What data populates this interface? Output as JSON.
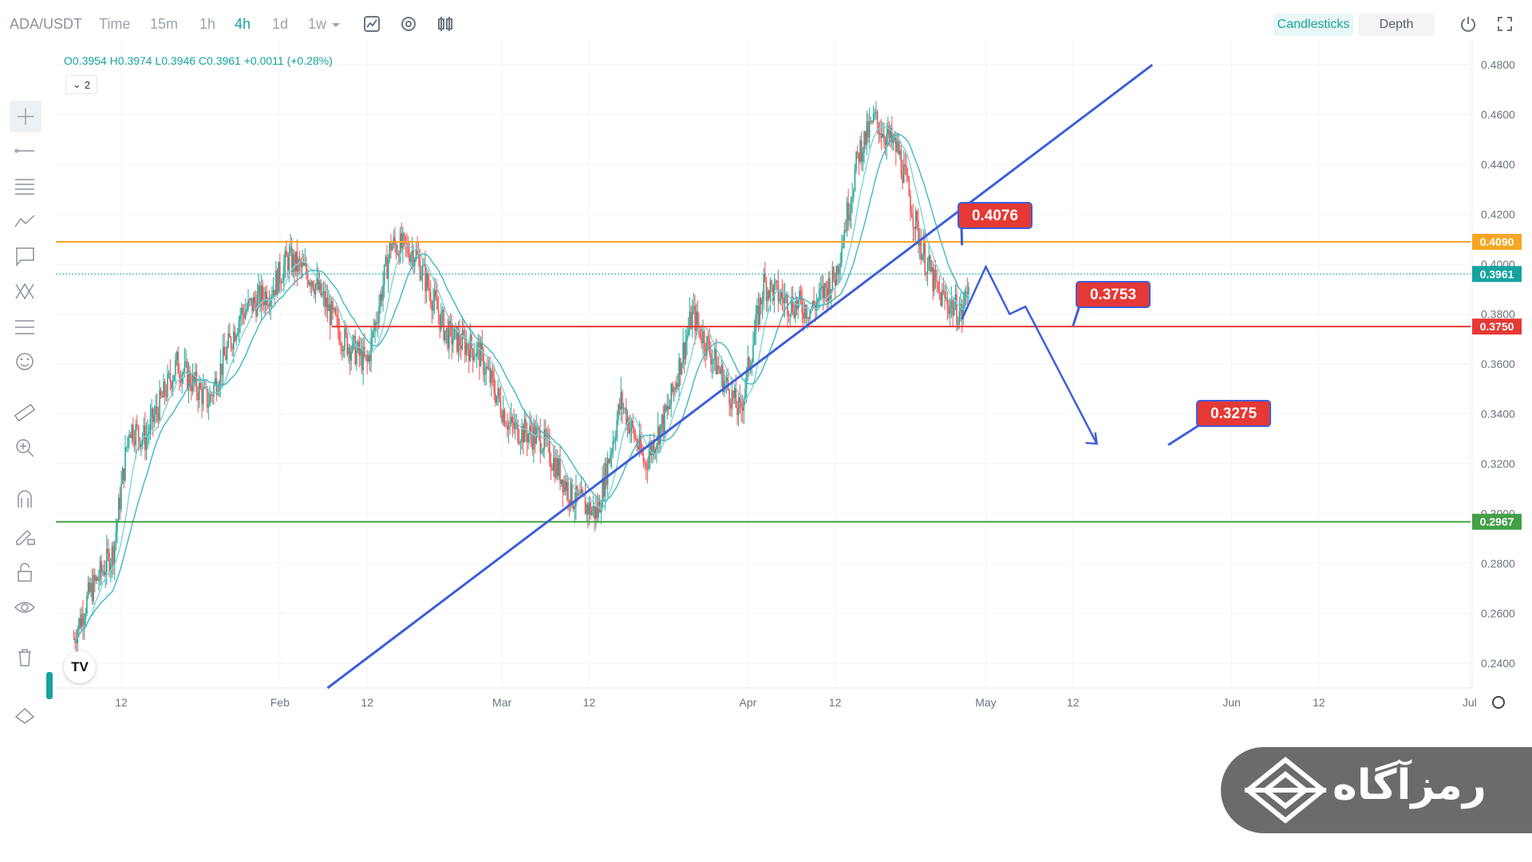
{
  "toolbar": {
    "symbol": "ADA/USDT",
    "intervals": [
      "Time",
      "15m",
      "1h",
      "4h",
      "1d",
      "1w"
    ],
    "active_interval": "4h",
    "chart_type_buttons": [
      "Candlesticks",
      "Depth"
    ],
    "active_chart_type": "Candlesticks"
  },
  "legend": {
    "ohlc": "O0.3954 H0.3974 L0.3946 C0.3961 +0.0011 (+0.28%)",
    "indicator_toggle": "2"
  },
  "brand": {
    "text": "رمزآگاه"
  },
  "colors": {
    "accent": "#16a3a0",
    "candle_up": "#26a69a",
    "candle_down": "#ef5350",
    "trendline": "#3d5fd9",
    "resistance_line": "#f5a623",
    "support_red_line": "#e53935",
    "support_green_line": "#43a047",
    "callout": "#e53935"
  },
  "chart_data": {
    "type": "candlestick",
    "symbol": "ADA/USDT",
    "timeframe": "4h",
    "y_axis": {
      "min": 0.23,
      "max": 0.49,
      "ticks": [
        "0.4800",
        "0.4600",
        "0.4400",
        "0.4200",
        "0.4000",
        "0.3800",
        "0.3600",
        "0.3400",
        "0.3200",
        "0.3000",
        "0.2800",
        "0.2600",
        "0.2400"
      ]
    },
    "x_axis": {
      "ticks": [
        "12",
        "Feb",
        "12",
        "Mar",
        "12",
        "Apr",
        "12",
        "May",
        "12",
        "Jun",
        "12",
        "Jul"
      ]
    },
    "price_path": [
      {
        "x": "Jan 5",
        "y": 0.25
      },
      {
        "x": "Jan 7",
        "y": 0.268
      },
      {
        "x": "Jan 10",
        "y": 0.285
      },
      {
        "x": "Jan 12",
        "y": 0.335
      },
      {
        "x": "Jan 14",
        "y": 0.33
      },
      {
        "x": "Jan 18",
        "y": 0.36
      },
      {
        "x": "Jan 22",
        "y": 0.345
      },
      {
        "x": "Jan 26",
        "y": 0.38
      },
      {
        "x": "Jan 30",
        "y": 0.39
      },
      {
        "x": "Feb 1",
        "y": 0.402
      },
      {
        "x": "Feb 4",
        "y": 0.395
      },
      {
        "x": "Feb 8",
        "y": 0.37
      },
      {
        "x": "Feb 11",
        "y": 0.36
      },
      {
        "x": "Feb 14",
        "y": 0.408
      },
      {
        "x": "Feb 17",
        "y": 0.405
      },
      {
        "x": "Feb 21",
        "y": 0.372
      },
      {
        "x": "Feb 25",
        "y": 0.365
      },
      {
        "x": "Mar 1",
        "y": 0.335
      },
      {
        "x": "Mar 5",
        "y": 0.33
      },
      {
        "x": "Mar 9",
        "y": 0.306
      },
      {
        "x": "Mar 12",
        "y": 0.3
      },
      {
        "x": "Mar 15",
        "y": 0.345
      },
      {
        "x": "Mar 18",
        "y": 0.32
      },
      {
        "x": "Mar 21",
        "y": 0.342
      },
      {
        "x": "Mar 24",
        "y": 0.38
      },
      {
        "x": "Mar 27",
        "y": 0.36
      },
      {
        "x": "Mar 30",
        "y": 0.34
      },
      {
        "x": "Apr 2",
        "y": 0.392
      },
      {
        "x": "Apr 5",
        "y": 0.385
      },
      {
        "x": "Apr 8",
        "y": 0.382
      },
      {
        "x": "Apr 11",
        "y": 0.395
      },
      {
        "x": "Apr 14",
        "y": 0.445
      },
      {
        "x": "Apr 16",
        "y": 0.458
      },
      {
        "x": "Apr 19",
        "y": 0.445
      },
      {
        "x": "Apr 22",
        "y": 0.405
      },
      {
        "x": "Apr 24",
        "y": 0.388
      },
      {
        "x": "Apr 27",
        "y": 0.38
      },
      {
        "x": "Apr 28",
        "y": 0.3961
      }
    ],
    "horizontal_lines": [
      {
        "name": "resistance",
        "price": 0.409,
        "label": "0.4090"
      },
      {
        "name": "current",
        "price": 0.3961,
        "label": "0.3961"
      },
      {
        "name": "support",
        "price": 0.375,
        "label": "0.3750"
      },
      {
        "name": "lower-support",
        "price": 0.2967,
        "label": "0.2967"
      }
    ],
    "trendline": {
      "from": {
        "x": "Feb 7",
        "y": 0.23
      },
      "to": {
        "x": "May 22",
        "y": 0.48
      }
    },
    "projection": [
      {
        "x": "Apr 28",
        "y": 0.378
      },
      {
        "x": "May 1",
        "y": 0.399
      },
      {
        "x": "May 4",
        "y": 0.38
      },
      {
        "x": "May 6",
        "y": 0.383
      },
      {
        "x": "May 15",
        "y": 0.328
      }
    ],
    "callouts": [
      "0.4076",
      "0.3753",
      "0.3275"
    ]
  }
}
